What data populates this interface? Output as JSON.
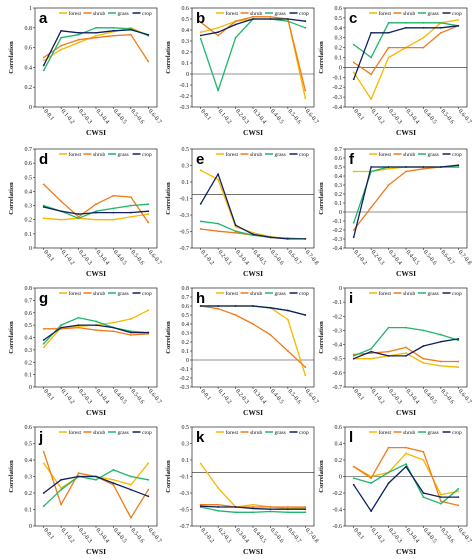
{
  "colors": {
    "forest": "#f7b800",
    "shrub": "#f07b18",
    "grass": "#1fb56b",
    "crop": "#10205e"
  },
  "legend": [
    "forest",
    "shrub",
    "grass",
    "crop"
  ],
  "xlabel": "CWSI",
  "ylabel": "Correlation",
  "chart_data": [
    {
      "type": "line",
      "panel": "a",
      "ylim": [
        0,
        1
      ],
      "yticks": [
        "0",
        "0.2",
        "0.4",
        "0.6",
        "0.8",
        "1"
      ],
      "categories": [
        "0-0.1",
        "0.1-0.2",
        "0.2-0.3",
        "0.3-0.4",
        "0.4-0.5",
        "0.5-0.6",
        "0.6-0.7"
      ],
      "series": [
        {
          "name": "forest",
          "values": [
            0.47,
            0.58,
            0.65,
            0.72,
            0.76,
            0.8,
            0.72
          ]
        },
        {
          "name": "shrub",
          "values": [
            0.5,
            0.62,
            0.68,
            0.7,
            0.72,
            0.73,
            0.46
          ]
        },
        {
          "name": "grass",
          "values": [
            0.37,
            0.7,
            0.73,
            0.8,
            0.8,
            0.79,
            0.72
          ]
        },
        {
          "name": "crop",
          "values": [
            0.42,
            0.77,
            0.75,
            0.75,
            0.77,
            0.78,
            0.73
          ]
        }
      ]
    },
    {
      "type": "line",
      "panel": "b",
      "ylim": [
        -0.3,
        0.6
      ],
      "yticks": [
        "-0.3",
        "-0.2",
        "-0.1",
        "0",
        "0.1",
        "0.2",
        "0.3",
        "0.4",
        "0.5",
        "0.6"
      ],
      "categories": [
        "0-0.1",
        "0.1-0.2",
        "0.2-0.3",
        "0.3-0.4",
        "0.4-0.5",
        "0.5-0.6",
        "0.6-0.7"
      ],
      "series": [
        {
          "name": "forest",
          "values": [
            0.38,
            0.42,
            0.48,
            0.5,
            0.5,
            0.5,
            -0.22
          ]
        },
        {
          "name": "shrub",
          "values": [
            0.47,
            0.35,
            0.48,
            0.52,
            0.52,
            0.5,
            -0.15
          ]
        },
        {
          "name": "grass",
          "values": [
            0.32,
            -0.15,
            0.33,
            0.5,
            0.5,
            0.48,
            0.42
          ]
        },
        {
          "name": "crop",
          "values": [
            0.35,
            0.38,
            0.45,
            0.5,
            0.5,
            0.5,
            0.48
          ]
        }
      ]
    },
    {
      "type": "line",
      "panel": "c",
      "ylim": [
        -0.4,
        0.6
      ],
      "yticks": [
        "-0.4",
        "-0.3",
        "-0.2",
        "-0.1",
        "0",
        "0.1",
        "0.2",
        "0.3",
        "0.4",
        "0.5",
        "0.6"
      ],
      "categories": [
        "0-0.1",
        "0.1-0.2",
        "0.2-0.3",
        "0.3-0.4",
        "0.4-0.5",
        "0.5-0.6",
        "0.6-0.7"
      ],
      "series": [
        {
          "name": "forest",
          "values": [
            -0.05,
            -0.32,
            0.1,
            0.2,
            0.3,
            0.45,
            0.48
          ]
        },
        {
          "name": "shrub",
          "values": [
            0.05,
            -0.07,
            0.2,
            0.2,
            0.2,
            0.35,
            0.42
          ]
        },
        {
          "name": "grass",
          "values": [
            0.23,
            0.1,
            0.45,
            0.45,
            0.45,
            0.45,
            0.42
          ]
        },
        {
          "name": "crop",
          "values": [
            -0.12,
            0.35,
            0.35,
            0.4,
            0.4,
            0.4,
            0.42
          ]
        }
      ]
    },
    {
      "type": "line",
      "panel": "d",
      "ylim": [
        0,
        0.7
      ],
      "yticks": [
        "0",
        "0.1",
        "0.2",
        "0.3",
        "0.4",
        "0.5",
        "0.6",
        "0.7"
      ],
      "categories": [
        "0-0.1",
        "0.1-0.2",
        "0.2-0.3",
        "0.3-0.4",
        "0.4-0.5",
        "0.5-0.6",
        "0.6-0.7"
      ],
      "series": [
        {
          "name": "forest",
          "values": [
            0.21,
            0.2,
            0.21,
            0.2,
            0.2,
            0.22,
            0.24
          ]
        },
        {
          "name": "shrub",
          "values": [
            0.45,
            0.33,
            0.22,
            0.31,
            0.37,
            0.36,
            0.18
          ]
        },
        {
          "name": "grass",
          "values": [
            0.3,
            0.26,
            0.21,
            0.26,
            0.28,
            0.3,
            0.31
          ]
        },
        {
          "name": "crop",
          "values": [
            0.29,
            0.26,
            0.24,
            0.25,
            0.25,
            0.25,
            0.26
          ]
        }
      ]
    },
    {
      "type": "line",
      "panel": "e",
      "ylim": [
        -0.7,
        0.6
      ],
      "yticks": [
        "-0.7",
        "-0.5",
        "-0.3",
        "-0.1",
        "0.1",
        "0.3",
        "0.5"
      ],
      "categories": [
        "0.1-0.2",
        "0.2-0.3",
        "0.3-0.4",
        "0.4-0.5",
        "0.5-0.6",
        "0.6-0.7",
        "0.7-0.8"
      ],
      "series": [
        {
          "name": "forest",
          "values": [
            0.32,
            0.2,
            -0.42,
            -0.5,
            -0.55,
            -0.58,
            -0.58
          ]
        },
        {
          "name": "shrub",
          "values": [
            -0.45,
            -0.48,
            -0.5,
            -0.53,
            -0.56,
            -0.58,
            -0.58
          ]
        },
        {
          "name": "grass",
          "values": [
            -0.35,
            -0.38,
            -0.48,
            -0.53,
            -0.56,
            -0.57,
            -0.58
          ]
        },
        {
          "name": "crop",
          "values": [
            -0.12,
            0.27,
            -0.4,
            -0.52,
            -0.56,
            -0.58,
            -0.58
          ]
        }
      ]
    },
    {
      "type": "line",
      "panel": "f",
      "ylim": [
        -0.4,
        0.7
      ],
      "yticks": [
        "-0.4",
        "-0.3",
        "-0.2",
        "-0.1",
        "0",
        "0.1",
        "0.2",
        "0.3",
        "0.4",
        "0.5",
        "0.6",
        "0.7"
      ],
      "categories": [
        "0.1-0.2",
        "0.2-0.3",
        "0.3-0.4",
        "0.4-0.5",
        "0.5-0.6",
        "0.6-0.7",
        "0.7-0.8"
      ],
      "series": [
        {
          "name": "forest",
          "values": [
            0.45,
            0.45,
            0.48,
            0.5,
            0.5,
            0.5,
            0.5
          ]
        },
        {
          "name": "shrub",
          "values": [
            -0.2,
            0.05,
            0.3,
            0.45,
            0.48,
            0.5,
            0.5
          ]
        },
        {
          "name": "grass",
          "values": [
            -0.12,
            0.45,
            0.5,
            0.5,
            0.5,
            0.5,
            0.5
          ]
        },
        {
          "name": "crop",
          "values": [
            -0.28,
            0.5,
            0.5,
            0.5,
            0.5,
            0.5,
            0.52
          ]
        }
      ]
    },
    {
      "type": "line",
      "panel": "g",
      "ylim": [
        0,
        0.8
      ],
      "yticks": [
        "0",
        "0.1",
        "0.2",
        "0.3",
        "0.4",
        "0.5",
        "0.6",
        "0.7",
        "0.8"
      ],
      "categories": [
        "0-0.1",
        "0.1-0.2",
        "0.2-0.3",
        "0.3-0.4",
        "0.4-0.5",
        "0.5-0.6",
        "0.6-0.7"
      ],
      "series": [
        {
          "name": "forest",
          "values": [
            0.32,
            0.48,
            0.49,
            0.5,
            0.52,
            0.55,
            0.62
          ]
        },
        {
          "name": "shrub",
          "values": [
            0.47,
            0.47,
            0.48,
            0.46,
            0.45,
            0.42,
            0.43
          ]
        },
        {
          "name": "grass",
          "values": [
            0.35,
            0.5,
            0.56,
            0.53,
            0.48,
            0.45,
            0.44
          ]
        },
        {
          "name": "crop",
          "values": [
            0.38,
            0.48,
            0.5,
            0.5,
            0.48,
            0.44,
            0.44
          ]
        }
      ]
    },
    {
      "type": "line",
      "panel": "h",
      "ylim": [
        -0.3,
        0.8
      ],
      "yticks": [
        "-0.3",
        "-0.2",
        "-0.1",
        "0",
        "0.1",
        "0.2",
        "0.3",
        "0.4",
        "0.5",
        "0.6",
        "0.7",
        "0.8"
      ],
      "categories": [
        "0-0.1",
        "0.1-0.2",
        "0.2-0.3",
        "0.3-0.4",
        "0.4-0.5",
        "0.5-0.6",
        "0.6-0.7"
      ],
      "series": [
        {
          "name": "forest",
          "values": [
            0.6,
            0.6,
            0.6,
            0.6,
            0.58,
            0.45,
            -0.17
          ]
        },
        {
          "name": "shrub",
          "values": [
            0.6,
            0.57,
            0.5,
            0.4,
            0.28,
            0.1,
            -0.08
          ]
        },
        {
          "name": "grass",
          "values": [
            0.6,
            0.6,
            0.6,
            0.6,
            0.58,
            0.55,
            0.5
          ]
        },
        {
          "name": "crop",
          "values": [
            0.6,
            0.6,
            0.6,
            0.6,
            0.58,
            0.55,
            0.5
          ]
        }
      ]
    },
    {
      "type": "line",
      "panel": "i",
      "ylim": [
        -0.7,
        0
      ],
      "yticks": [
        "-0.7",
        "-0.6",
        "-0.5",
        "-0.4",
        "-0.3",
        "-0.2",
        "-0.1",
        "0"
      ],
      "categories": [
        "0-0.1",
        "0.1-0.2",
        "0.2-0.3",
        "0.3-0.4",
        "0.4-0.5",
        "0.5-0.6",
        "0.6-0.7"
      ],
      "series": [
        {
          "name": "forest",
          "values": [
            -0.5,
            -0.5,
            -0.48,
            -0.46,
            -0.53,
            -0.55,
            -0.56
          ]
        },
        {
          "name": "shrub",
          "values": [
            -0.47,
            -0.46,
            -0.45,
            -0.42,
            -0.5,
            -0.52,
            -0.52
          ]
        },
        {
          "name": "grass",
          "values": [
            -0.48,
            -0.43,
            -0.28,
            -0.28,
            -0.3,
            -0.33,
            -0.37
          ]
        },
        {
          "name": "crop",
          "values": [
            -0.5,
            -0.45,
            -0.48,
            -0.48,
            -0.41,
            -0.38,
            -0.36
          ]
        }
      ]
    },
    {
      "type": "line",
      "panel": "j",
      "ylim": [
        0,
        0.6
      ],
      "yticks": [
        "0",
        "0.1",
        "0.2",
        "0.3",
        "0.4",
        "0.5",
        "0.6"
      ],
      "categories": [
        "0-0.1",
        "0.1-0.2",
        "0.2-0.3",
        "0.3-0.4",
        "0.4-0.5",
        "0.5-0.6",
        "0.6-0.7"
      ],
      "series": [
        {
          "name": "forest",
          "values": [
            0.38,
            0.23,
            0.3,
            0.3,
            0.28,
            0.25,
            0.38
          ]
        },
        {
          "name": "shrub",
          "values": [
            0.45,
            0.13,
            0.32,
            0.3,
            0.25,
            0.05,
            0.22
          ]
        },
        {
          "name": "grass",
          "values": [
            0.12,
            0.22,
            0.3,
            0.28,
            0.34,
            0.3,
            0.28
          ]
        },
        {
          "name": "crop",
          "values": [
            0.2,
            0.28,
            0.3,
            0.3,
            0.26,
            0.22,
            0.18
          ]
        }
      ]
    },
    {
      "type": "line",
      "panel": "k",
      "ylim": [
        -0.7,
        0.6
      ],
      "yticks": [
        "-0.7",
        "-0.5",
        "-0.3",
        "-0.1",
        "0.1",
        "0.3",
        "0.5"
      ],
      "categories": [
        "0.1-0.2",
        "0.2-0.3",
        "0.3-0.4",
        "0.4-0.5",
        "0.5-0.6",
        "0.6-0.7",
        "0.7-0.8"
      ],
      "series": [
        {
          "name": "forest",
          "values": [
            0.12,
            -0.2,
            -0.45,
            -0.42,
            -0.45,
            -0.47,
            -0.46
          ]
        },
        {
          "name": "shrub",
          "values": [
            -0.42,
            -0.42,
            -0.45,
            -0.45,
            -0.45,
            -0.45,
            -0.45
          ]
        },
        {
          "name": "grass",
          "values": [
            -0.45,
            -0.5,
            -0.52,
            -0.52,
            -0.51,
            -0.52,
            -0.52
          ]
        },
        {
          "name": "crop",
          "values": [
            -0.44,
            -0.45,
            -0.45,
            -0.47,
            -0.48,
            -0.48,
            -0.48
          ]
        }
      ]
    },
    {
      "type": "line",
      "panel": "l",
      "ylim": [
        -0.6,
        0.6
      ],
      "yticks": [
        "-0.6",
        "-0.4",
        "-0.2",
        "0",
        "0.2",
        "0.4",
        "0.6"
      ],
      "categories": [
        "0-0.1",
        "0.1-0.2",
        "0.2-0.3",
        "0.3-0.4",
        "0.4-0.5",
        "0.5-0.6",
        "0.6-0.7"
      ],
      "series": [
        {
          "name": "forest",
          "values": [
            0.12,
            0,
            0.05,
            0.28,
            0.2,
            -0.22,
            -0.18
          ]
        },
        {
          "name": "shrub",
          "values": [
            0.12,
            -0.02,
            0.35,
            0.35,
            0.3,
            -0.3,
            -0.35
          ]
        },
        {
          "name": "grass",
          "values": [
            -0.02,
            -0.08,
            0.05,
            0.15,
            -0.25,
            -0.33,
            -0.15
          ]
        },
        {
          "name": "crop",
          "values": [
            -0.1,
            -0.42,
            -0.08,
            0.12,
            -0.2,
            -0.25,
            -0.25
          ]
        }
      ]
    }
  ]
}
